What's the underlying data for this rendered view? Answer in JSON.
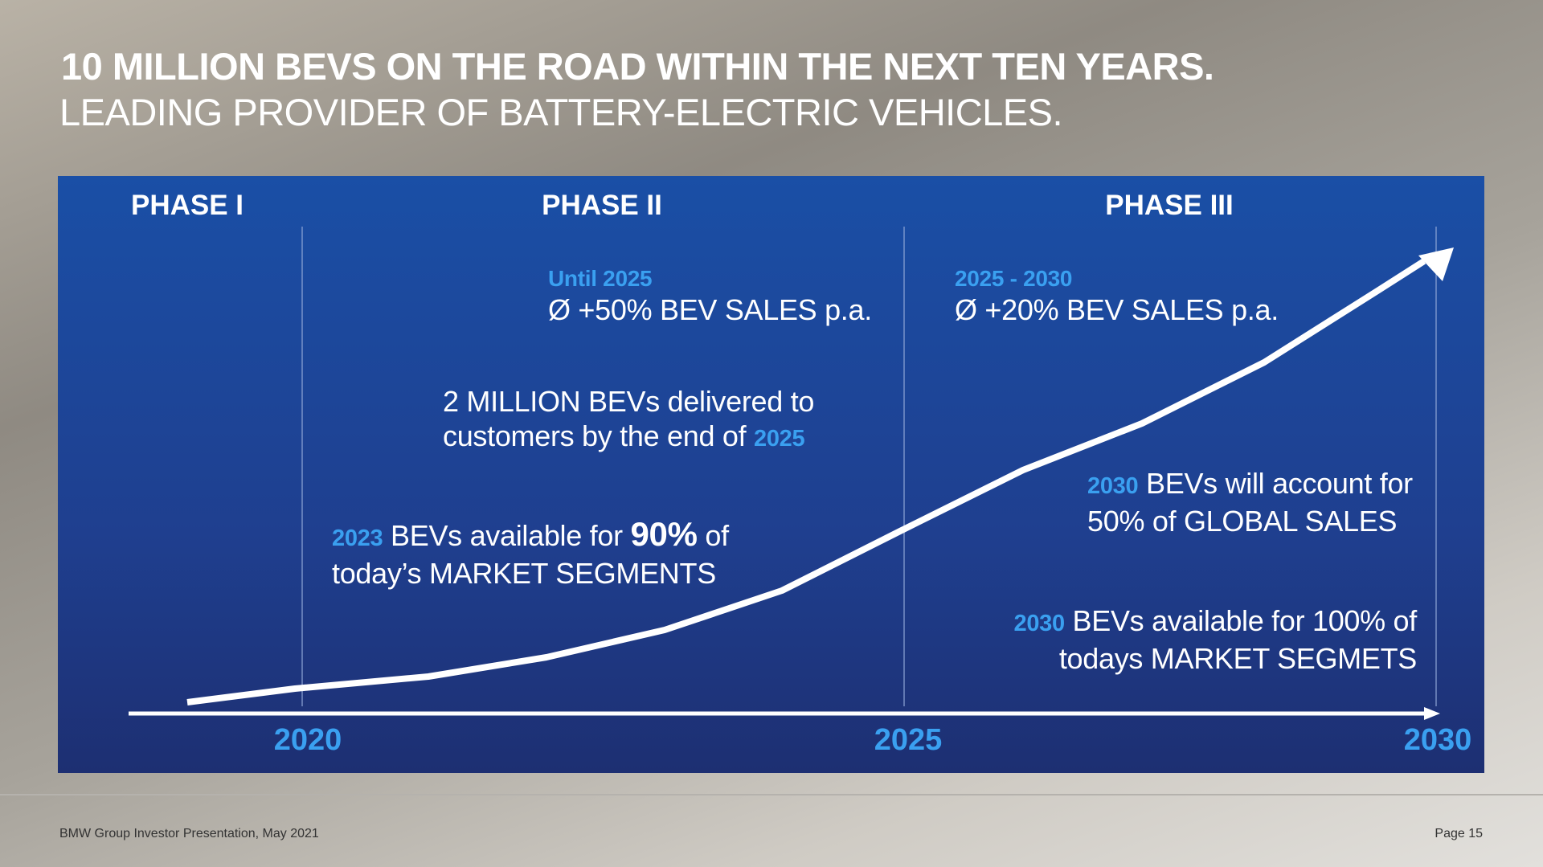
{
  "header": {
    "title": "10 MILLION BEVS ON THE ROAD WITHIN THE NEXT TEN YEARS.",
    "subtitle": "LEADING PROVIDER OF BATTERY-ELECTRIC VEHICLES."
  },
  "phases": [
    "PHASE I",
    "PHASE II",
    "PHASE III"
  ],
  "timeline": [
    "2020",
    "2025",
    "2030"
  ],
  "growth": [
    {
      "period": "Until 2025",
      "rate": "Ø +50% BEV SALES p.a."
    },
    {
      "period": "2025 - 2030",
      "rate": "Ø +20% BEV SALES p.a."
    }
  ],
  "milestones": [
    {
      "text": "2 MILLION BEVs delivered to customers by the end of",
      "year": "2025"
    },
    {
      "year": "2023",
      "text": "BEVs available for",
      "emphasis": "90%",
      "text_end": "of today’s MARKET SEGMENTS"
    },
    {
      "year": "2030",
      "text": "BEVs will account for 50% of GLOBAL SALES"
    },
    {
      "year": "2030",
      "text": "BEVs available for 100% of todays MARKET SEGMETS"
    }
  ],
  "footer": {
    "source": "BMW Group Investor Presentation, May 2021",
    "page": "Page 15"
  }
}
